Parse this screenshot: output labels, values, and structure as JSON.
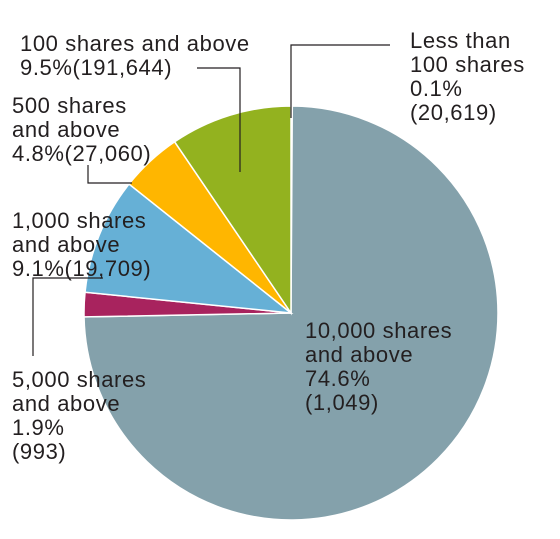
{
  "chart_data": {
    "type": "pie",
    "categories": [
      "Less than\n100 shares",
      "10,000 shares\nand above",
      "5,000 shares\nand above",
      "1,000 shares\nand above",
      "500 shares\nand above",
      "100 shares and above"
    ],
    "values": [
      0.1,
      74.6,
      1.9,
      9.1,
      4.8,
      9.5
    ],
    "value_labels": [
      "0.1%",
      "74.6%",
      "1.9%",
      "9.1%",
      "4.8%",
      "9.5%"
    ],
    "count_labels": [
      "(20,619)",
      "(1,049)",
      "(993)",
      "(19,709)",
      "(27,060)",
      "(191,644)"
    ],
    "colors": [
      "#eab07a",
      "#84a1ab",
      "#a8235e",
      "#66b0d6",
      "#ffb600",
      "#93b21f"
    ]
  }
}
